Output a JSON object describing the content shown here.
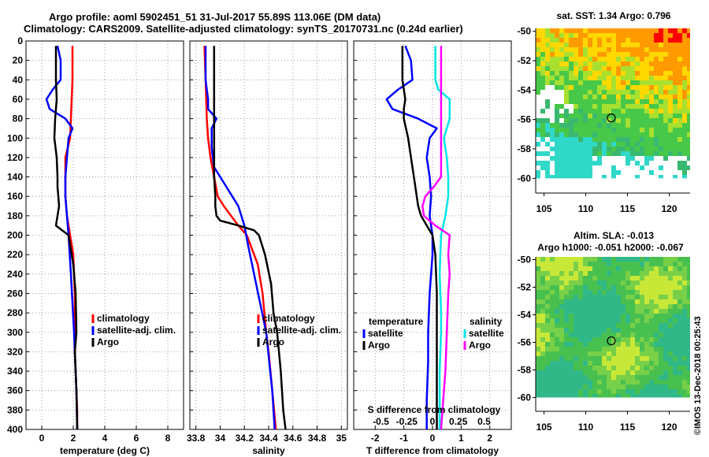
{
  "header": {
    "title_line1": "Argo profile: aoml 5902451_51 31-Jul-2017 55.89S 113.06E (DM data)",
    "title_line2": "Climatology: CARS2009. Satellite-adjusted climatology: synTS_20170731.nc (0.24d earlier)"
  },
  "colors": {
    "climatology": "#ff0000",
    "satellite": "#0000ff",
    "argo": "#000000",
    "sat_salinity": "#00e5e5",
    "clim_salinity_diff": "#ff00ff"
  },
  "chart_data": [
    {
      "type": "line",
      "id": "temperature",
      "xlabel": "temperature (deg C)",
      "xlim": [
        -1,
        9
      ],
      "ylim": [
        400,
        0
      ],
      "x_ticks": [
        0,
        2,
        4,
        6,
        8
      ],
      "x_tick_labels": [
        "0",
        "2",
        "4",
        "6",
        "8"
      ],
      "y_ticks": [
        0,
        20,
        40,
        60,
        80,
        100,
        120,
        140,
        160,
        180,
        200,
        220,
        240,
        260,
        280,
        300,
        320,
        340,
        360,
        380,
        400
      ],
      "y_tick_labels": [
        "0",
        "20",
        "40",
        "60",
        "80",
        "100",
        "120",
        "140",
        "160",
        "180",
        "200",
        "220",
        "240",
        "260",
        "280",
        "300",
        "320",
        "340",
        "360",
        "380",
        "400"
      ],
      "legend": [
        "climatology",
        "satellite-adj. clim.",
        "Argo"
      ],
      "series": [
        {
          "name": "climatology",
          "color": "#ff0000",
          "x": [
            1.95,
            1.95,
            1.9,
            1.85,
            1.8,
            1.5,
            1.5,
            1.6,
            1.8,
            2.0,
            2.1,
            2.1,
            2.1,
            2.2,
            2.25,
            2.25
          ],
          "y": [
            5,
            40,
            60,
            80,
            100,
            120,
            160,
            180,
            200,
            220,
            260,
            300,
            320,
            360,
            380,
            400
          ]
        },
        {
          "name": "satellite-adj. clim.",
          "color": "#0000ff",
          "x": [
            1.0,
            1.2,
            1.2,
            0.7,
            0.3,
            0.5,
            1.5,
            1.95,
            1.7,
            1.6,
            1.5,
            1.5,
            1.6,
            1.7,
            1.85,
            2.05,
            2.2,
            2.25
          ],
          "y": [
            5,
            20,
            40,
            50,
            60,
            70,
            80,
            90,
            100,
            120,
            140,
            160,
            180,
            200,
            240,
            300,
            360,
            400
          ]
        },
        {
          "name": "Argo",
          "color": "#000000",
          "x": [
            0.9,
            0.9,
            0.95,
            0.85,
            0.8,
            0.95,
            1.0,
            1.0,
            1.05,
            1.1,
            1.0,
            0.9,
            1.7,
            1.8,
            2.0,
            2.15,
            2.2,
            2.1,
            2.2,
            2.25
          ],
          "y": [
            5,
            40,
            60,
            80,
            100,
            120,
            140,
            150,
            160,
            170,
            180,
            190,
            200,
            210,
            230,
            260,
            300,
            320,
            360,
            400
          ]
        }
      ]
    },
    {
      "type": "line",
      "id": "salinity",
      "xlabel": "salinity",
      "xlim": [
        33.75,
        35.05
      ],
      "ylim": [
        400,
        0
      ],
      "x_ticks": [
        33.8,
        34,
        34.2,
        34.4,
        34.6,
        34.8,
        35
      ],
      "x_tick_labels": [
        "33.8",
        "34",
        "34.2",
        "34.4",
        "34.6",
        "34.8",
        "35"
      ],
      "legend": [
        "climatology",
        "satellite-adj. clim.",
        "Argo"
      ],
      "series": [
        {
          "name": "climatology",
          "color": "#ff0000",
          "x": [
            33.87,
            33.88,
            33.89,
            33.9,
            33.92,
            33.95,
            33.98,
            34.03,
            34.09,
            34.15,
            34.22,
            34.31,
            34.35,
            34.38,
            34.4,
            34.43,
            34.46
          ],
          "y": [
            5,
            40,
            80,
            100,
            120,
            140,
            160,
            170,
            180,
            190,
            200,
            230,
            260,
            300,
            320,
            360,
            400
          ]
        },
        {
          "name": "satellite-adj. clim.",
          "color": "#0000ff",
          "x": [
            33.88,
            33.88,
            33.9,
            33.9,
            33.97,
            33.93,
            33.93,
            33.94,
            33.95,
            34.0,
            34.05,
            34.1,
            34.15,
            34.2,
            34.23,
            34.28,
            34.33,
            34.38,
            34.43,
            34.45
          ],
          "y": [
            5,
            40,
            60,
            70,
            80,
            90,
            110,
            120,
            130,
            140,
            150,
            160,
            170,
            190,
            210,
            240,
            270,
            300,
            360,
            400
          ]
        },
        {
          "name": "Argo",
          "color": "#000000",
          "x": [
            33.95,
            33.95,
            33.95,
            33.96,
            33.96,
            33.97,
            34.0,
            34.15,
            34.28,
            34.32,
            34.37,
            34.42,
            34.44,
            34.47,
            34.5,
            34.52,
            34.54
          ],
          "y": [
            5,
            100,
            140,
            160,
            170,
            180,
            185,
            190,
            195,
            200,
            220,
            250,
            280,
            300,
            340,
            380,
            400
          ]
        }
      ]
    },
    {
      "type": "line",
      "id": "difference",
      "xlabel": "T difference from climatology",
      "xlabel2": "S difference from climatology",
      "xlim": [
        -2.75,
        2.75
      ],
      "ylim": [
        400,
        0
      ],
      "x_ticks": [
        -2,
        -1,
        0,
        1,
        2
      ],
      "x_tick_labels": [
        "-2",
        "-1",
        "0",
        "1",
        "2"
      ],
      "s_tick_positions": [
        -1.8,
        -0.9,
        0,
        0.9,
        1.8
      ],
      "s_tick_labels": [
        "-0.5",
        "-0.25",
        "0",
        "0.25",
        "0.5"
      ],
      "legend_temperature_title": "temperature",
      "legend_salinity_title": "salinity",
      "legend_temperature": [
        "satellite",
        "Argo"
      ],
      "legend_salinity": [
        "satellite",
        "Argo"
      ],
      "series": [
        {
          "name": "T satellite",
          "color": "#0000ff",
          "x": [
            -0.95,
            -0.75,
            -0.7,
            -1.2,
            -1.6,
            -1.4,
            -0.5,
            0.15,
            -0.1,
            -0.2,
            -0.1,
            -0.05,
            -0.1,
            0.0,
            0.0,
            -0.1,
            -0.15,
            -0.15,
            -0.2,
            -0.2
          ],
          "y": [
            5,
            20,
            40,
            50,
            60,
            70,
            80,
            90,
            100,
            120,
            140,
            160,
            180,
            200,
            220,
            260,
            300,
            330,
            370,
            400
          ]
        },
        {
          "name": "T Argo",
          "color": "#000000",
          "x": [
            -1.05,
            -1.05,
            -0.95,
            -1.0,
            -1.0,
            -0.85,
            -0.75,
            -0.65,
            -0.55,
            -0.5,
            -0.4,
            -0.2,
            0.0,
            0.1,
            0.15,
            0.15,
            0.15,
            0.15,
            0.15
          ],
          "y": [
            5,
            40,
            60,
            70,
            80,
            100,
            120,
            140,
            160,
            170,
            180,
            190,
            200,
            220,
            260,
            300,
            340,
            380,
            400
          ]
        },
        {
          "name": "S satellite",
          "color": "#00e5e5",
          "x": [
            0.1,
            0.1,
            0.2,
            0.6,
            0.6,
            0.4,
            0.5,
            0.55,
            0.55,
            0.45,
            0.3,
            0.25,
            0.3,
            0.3,
            0.25,
            0.25,
            0.25
          ],
          "y": [
            5,
            40,
            50,
            60,
            80,
            100,
            120,
            140,
            160,
            180,
            200,
            240,
            280,
            300,
            340,
            380,
            400
          ]
        },
        {
          "name": "S Argo",
          "color": "#ff00ff",
          "x": [
            0.3,
            0.3,
            0.3,
            0.3,
            0.3,
            0.3,
            0.05,
            -0.25,
            -0.35,
            -0.3,
            0.1,
            0.6,
            0.55,
            0.6,
            0.55,
            0.5,
            0.45,
            0.4,
            0.35,
            0.3
          ],
          "y": [
            5,
            60,
            80,
            100,
            120,
            140,
            150,
            160,
            170,
            180,
            190,
            200,
            220,
            240,
            260,
            300,
            340,
            360,
            380,
            400
          ]
        }
      ]
    },
    {
      "type": "heatmap",
      "id": "sst_map",
      "title": "sat. SST: 1.34 Argo: 0.796",
      "xlim": [
        104,
        122.5
      ],
      "ylim": [
        -61,
        -49.8
      ],
      "x_ticks": [
        105,
        110,
        115,
        120
      ],
      "x_tick_labels": [
        "105",
        "110",
        "115",
        "120"
      ],
      "y_ticks": [
        -50,
        -52,
        -54,
        -56,
        -58,
        -60
      ],
      "y_tick_labels": [
        "-50",
        "-52",
        "-54",
        "-56",
        "-58",
        "-60"
      ],
      "marker": {
        "lon": 113.06,
        "lat": -55.89
      }
    },
    {
      "type": "heatmap",
      "id": "sla_map",
      "title": "Altim. SLA: -0.013",
      "title2": "Argo h1000: -0.051 h2000: -0.067",
      "xlim": [
        104,
        122.5
      ],
      "ylim": [
        -61,
        -49.8
      ],
      "x_ticks": [
        105,
        110,
        115,
        120
      ],
      "x_tick_labels": [
        "105",
        "110",
        "115",
        "120"
      ],
      "y_ticks": [
        -50,
        -52,
        -54,
        -56,
        -58,
        -60
      ],
      "y_tick_labels": [
        "-50",
        "-52",
        "-54",
        "-56",
        "-58",
        "-60"
      ],
      "marker": {
        "lon": 113.06,
        "lat": -55.89
      }
    }
  ],
  "watermark": "©IMOS 13-Dec-2018 00:25:43"
}
